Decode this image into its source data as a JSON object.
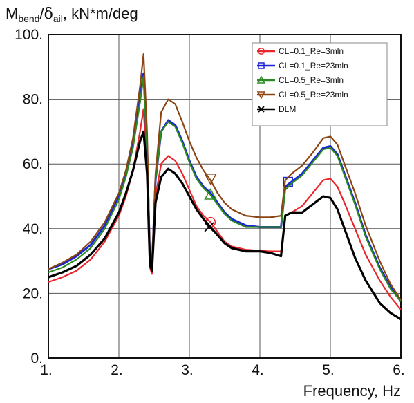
{
  "chart_data": {
    "type": "line",
    "ylabel": {
      "base": "M",
      "sub1": "bend",
      "slash": "/",
      "delta": "δ",
      "sub2": "ail",
      "unit": ", kN*m/deg"
    },
    "xlabel": "Frequency, Hz",
    "xlim": [
      1,
      6
    ],
    "ylim": [
      0,
      100
    ],
    "x_ticks": [
      "1.",
      "2.",
      "3.",
      "4.",
      "5.",
      "6."
    ],
    "y_ticks": [
      "0.",
      "20.",
      "40.",
      "60.",
      "80.",
      "100."
    ],
    "x_tick_values": [
      1,
      2,
      3,
      4,
      5,
      6
    ],
    "y_tick_values": [
      0,
      20,
      40,
      60,
      80,
      100
    ],
    "grid": true,
    "legend_position": "top-right",
    "series": [
      {
        "name": "CL=0.1_Re=3mln",
        "color": "#e8262b",
        "marker": "circle",
        "points": [
          [
            1,
            23.5
          ],
          [
            1.2,
            25
          ],
          [
            1.4,
            27
          ],
          [
            1.6,
            30.5
          ],
          [
            1.8,
            36
          ],
          [
            2,
            44
          ],
          [
            2.1,
            50
          ],
          [
            2.2,
            58
          ],
          [
            2.3,
            70
          ],
          [
            2.35,
            77
          ],
          [
            2.4,
            58
          ],
          [
            2.44,
            28
          ],
          [
            2.47,
            26
          ],
          [
            2.52,
            50
          ],
          [
            2.6,
            60
          ],
          [
            2.7,
            62.5
          ],
          [
            2.8,
            61
          ],
          [
            2.9,
            57
          ],
          [
            3,
            52
          ],
          [
            3.1,
            47
          ],
          [
            3.2,
            44
          ],
          [
            3.3,
            42
          ],
          [
            3.4,
            39
          ],
          [
            3.5,
            36
          ],
          [
            3.6,
            34.5
          ],
          [
            3.8,
            33.5
          ],
          [
            4,
            33.2
          ],
          [
            4.15,
            33
          ],
          [
            4.3,
            33
          ],
          [
            4.36,
            44
          ],
          [
            4.45,
            45
          ],
          [
            4.6,
            47
          ],
          [
            4.75,
            51
          ],
          [
            4.9,
            55
          ],
          [
            5,
            55.5
          ],
          [
            5.1,
            53
          ],
          [
            5.2,
            48
          ],
          [
            5.35,
            40
          ],
          [
            5.5,
            32
          ],
          [
            5.7,
            24
          ],
          [
            5.85,
            19
          ],
          [
            6,
            15
          ]
        ],
        "marker_at": [
          3.3,
          42
        ]
      },
      {
        "name": "CL=0.1_Re=23mln",
        "color": "#1a24d6",
        "marker": "square",
        "points": [
          [
            1,
            27.5
          ],
          [
            1.2,
            29
          ],
          [
            1.4,
            31.5
          ],
          [
            1.6,
            35
          ],
          [
            1.8,
            41
          ],
          [
            2,
            50
          ],
          [
            2.1,
            57
          ],
          [
            2.2,
            66
          ],
          [
            2.3,
            80
          ],
          [
            2.35,
            88
          ],
          [
            2.4,
            65
          ],
          [
            2.44,
            30
          ],
          [
            2.47,
            28
          ],
          [
            2.52,
            55
          ],
          [
            2.6,
            70
          ],
          [
            2.7,
            73.5
          ],
          [
            2.8,
            72
          ],
          [
            2.9,
            67
          ],
          [
            3,
            61
          ],
          [
            3.1,
            56
          ],
          [
            3.2,
            53
          ],
          [
            3.3,
            51
          ],
          [
            3.4,
            48
          ],
          [
            3.5,
            45
          ],
          [
            3.6,
            43
          ],
          [
            3.8,
            41
          ],
          [
            4,
            40.5
          ],
          [
            4.15,
            40.5
          ],
          [
            4.3,
            40.5
          ],
          [
            4.36,
            53
          ],
          [
            4.45,
            54.5
          ],
          [
            4.6,
            57
          ],
          [
            4.75,
            61
          ],
          [
            4.9,
            65
          ],
          [
            5,
            65.5
          ],
          [
            5.1,
            63
          ],
          [
            5.2,
            57
          ],
          [
            5.35,
            48
          ],
          [
            5.5,
            38
          ],
          [
            5.7,
            28
          ],
          [
            5.85,
            22
          ],
          [
            6,
            17.5
          ]
        ],
        "marker_at": [
          4.4,
          54.5
        ]
      },
      {
        "name": "CL=0.5_Re=3mln",
        "color": "#2c8a22",
        "marker": "triangle-up",
        "points": [
          [
            1,
            26.5
          ],
          [
            1.2,
            28
          ],
          [
            1.4,
            30.5
          ],
          [
            1.6,
            34
          ],
          [
            1.8,
            40
          ],
          [
            2,
            49
          ],
          [
            2.1,
            56
          ],
          [
            2.2,
            65
          ],
          [
            2.3,
            79
          ],
          [
            2.35,
            87
          ],
          [
            2.4,
            64
          ],
          [
            2.44,
            30
          ],
          [
            2.47,
            28
          ],
          [
            2.52,
            55
          ],
          [
            2.6,
            70
          ],
          [
            2.7,
            73
          ],
          [
            2.8,
            71.5
          ],
          [
            2.9,
            66.5
          ],
          [
            3,
            60.5
          ],
          [
            3.1,
            55.5
          ],
          [
            3.2,
            52.5
          ],
          [
            3.3,
            50.5
          ],
          [
            3.4,
            47.5
          ],
          [
            3.5,
            44.5
          ],
          [
            3.6,
            42.5
          ],
          [
            3.8,
            40.5
          ],
          [
            4,
            40.5
          ],
          [
            4.15,
            40.5
          ],
          [
            4.3,
            40.5
          ],
          [
            4.36,
            52
          ],
          [
            4.45,
            54
          ],
          [
            4.6,
            56.5
          ],
          [
            4.75,
            60.5
          ],
          [
            4.9,
            64.5
          ],
          [
            5,
            65
          ],
          [
            5.1,
            62.5
          ],
          [
            5.2,
            56.5
          ],
          [
            5.35,
            47.5
          ],
          [
            5.5,
            37.5
          ],
          [
            5.7,
            27.5
          ],
          [
            5.85,
            21.5
          ],
          [
            6,
            17.5
          ]
        ],
        "marker_at": [
          3.3,
          50.5
        ]
      },
      {
        "name": "CL=0.5_Re=23mln",
        "color": "#8b4513",
        "marker": "triangle-down",
        "points": [
          [
            1,
            27.5
          ],
          [
            1.2,
            29.5
          ],
          [
            1.4,
            32
          ],
          [
            1.6,
            36
          ],
          [
            1.8,
            42
          ],
          [
            2,
            51
          ],
          [
            2.1,
            58
          ],
          [
            2.2,
            68
          ],
          [
            2.3,
            84
          ],
          [
            2.35,
            94
          ],
          [
            2.4,
            70
          ],
          [
            2.44,
            32
          ],
          [
            2.47,
            29
          ],
          [
            2.52,
            57
          ],
          [
            2.6,
            76
          ],
          [
            2.7,
            80
          ],
          [
            2.8,
            78.5
          ],
          [
            2.9,
            73
          ],
          [
            3,
            67
          ],
          [
            3.1,
            62
          ],
          [
            3.2,
            58
          ],
          [
            3.3,
            55
          ],
          [
            3.4,
            51
          ],
          [
            3.5,
            48
          ],
          [
            3.6,
            46
          ],
          [
            3.8,
            44
          ],
          [
            4,
            43.5
          ],
          [
            4.15,
            43.5
          ],
          [
            4.3,
            44
          ],
          [
            4.36,
            55
          ],
          [
            4.45,
            57
          ],
          [
            4.6,
            59.5
          ],
          [
            4.75,
            63.5
          ],
          [
            4.9,
            68
          ],
          [
            5,
            68.5
          ],
          [
            5.1,
            66
          ],
          [
            5.2,
            60
          ],
          [
            5.35,
            51
          ],
          [
            5.5,
            41
          ],
          [
            5.7,
            30
          ],
          [
            5.85,
            23
          ],
          [
            6,
            18
          ]
        ],
        "marker_at": [
          3.3,
          55.5
        ]
      },
      {
        "name": "DLM",
        "color": "#000000",
        "marker": "x",
        "points": [
          [
            1,
            25
          ],
          [
            1.2,
            26.5
          ],
          [
            1.4,
            28.5
          ],
          [
            1.6,
            32
          ],
          [
            1.8,
            37
          ],
          [
            2,
            45
          ],
          [
            2.1,
            51
          ],
          [
            2.2,
            58
          ],
          [
            2.3,
            67
          ],
          [
            2.35,
            70
          ],
          [
            2.4,
            57
          ],
          [
            2.44,
            29
          ],
          [
            2.47,
            27
          ],
          [
            2.52,
            48
          ],
          [
            2.6,
            56
          ],
          [
            2.7,
            58.5
          ],
          [
            2.8,
            57
          ],
          [
            2.9,
            54
          ],
          [
            3,
            50
          ],
          [
            3.1,
            46
          ],
          [
            3.2,
            43
          ],
          [
            3.3,
            40.5
          ],
          [
            3.4,
            38
          ],
          [
            3.5,
            35.5
          ],
          [
            3.6,
            34
          ],
          [
            3.8,
            33
          ],
          [
            4,
            33
          ],
          [
            4.15,
            32.5
          ],
          [
            4.3,
            31.5
          ],
          [
            4.36,
            44
          ],
          [
            4.45,
            45
          ],
          [
            4.6,
            45
          ],
          [
            4.75,
            47.5
          ],
          [
            4.9,
            50
          ],
          [
            5,
            49.5
          ],
          [
            5.1,
            46
          ],
          [
            5.2,
            40
          ],
          [
            5.35,
            31
          ],
          [
            5.5,
            24
          ],
          [
            5.7,
            17
          ],
          [
            5.85,
            14
          ],
          [
            6,
            12
          ]
        ],
        "marker_at": [
          3.28,
          40.5
        ]
      }
    ]
  }
}
